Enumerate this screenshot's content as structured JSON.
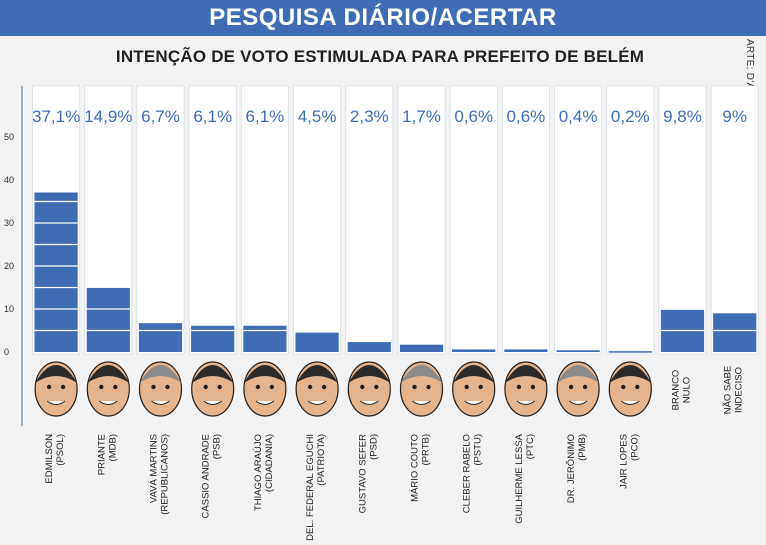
{
  "header": {
    "banner_title": "PESQUISA DIÁRIO/ACERTAR",
    "subtitle": "INTENÇÃO DE VOTO ESTIMULADA PARA PREFEITO DE BELÉM",
    "credit": "ARTE: D'ANGELO VALENTE"
  },
  "colors": {
    "banner": "#3f6db5",
    "bar": "#3f6db5",
    "value_text": "#3f6db5",
    "column_bg": "#ffffff"
  },
  "chart_data": {
    "type": "bar",
    "title": "INTENÇÃO DE VOTO ESTIMULADA PARA PREFEITO DE BELÉM",
    "ylim": [
      0,
      50
    ],
    "yticks": [
      0,
      10,
      20,
      30,
      40,
      50
    ],
    "grid": false,
    "categories": [
      [
        "EDMILSON",
        "(PSOL)"
      ],
      [
        "PRIANTE",
        "(MDB)"
      ],
      [
        "VAVÁ MARTINS",
        "(REPUBLICANOS)"
      ],
      [
        "CASSIO ANDRADE",
        "(PSB)"
      ],
      [
        "THIAGO ARAÚJO",
        "(CIDADANIA)"
      ],
      [
        "DEL. FEDERAL EGUCHI",
        "(PATRIOTA)"
      ],
      [
        "GUSTAVO SEFER",
        "(PSD)"
      ],
      [
        "MÁRIO COUTO",
        "(PRTB)"
      ],
      [
        "CLEBER RABELO",
        "(PSTU)"
      ],
      [
        "GUILHERME LESSA",
        "(PTC)"
      ],
      [
        "DR. JERÔNIMO",
        "(PMB)"
      ],
      [
        "JAIR LOPES",
        "(PCO)"
      ],
      [
        "BRANCO",
        "NULO"
      ],
      [
        "NÃO SABE",
        "INDECISO"
      ]
    ],
    "values": [
      37.1,
      14.9,
      6.7,
      6.1,
      6.1,
      4.5,
      2.3,
      1.7,
      0.6,
      0.6,
      0.4,
      0.2,
      9.8,
      9
    ],
    "value_labels": [
      "37,1%",
      "14,9%",
      "6,7%",
      "6,1%",
      "6,1%",
      "4,5%",
      "2,3%",
      "1,7%",
      "0,6%",
      "0,6%",
      "0,4%",
      "0,2%",
      "9,8%",
      "9%"
    ],
    "has_photo": [
      true,
      true,
      true,
      true,
      true,
      true,
      true,
      true,
      true,
      true,
      true,
      true,
      false,
      false
    ]
  }
}
